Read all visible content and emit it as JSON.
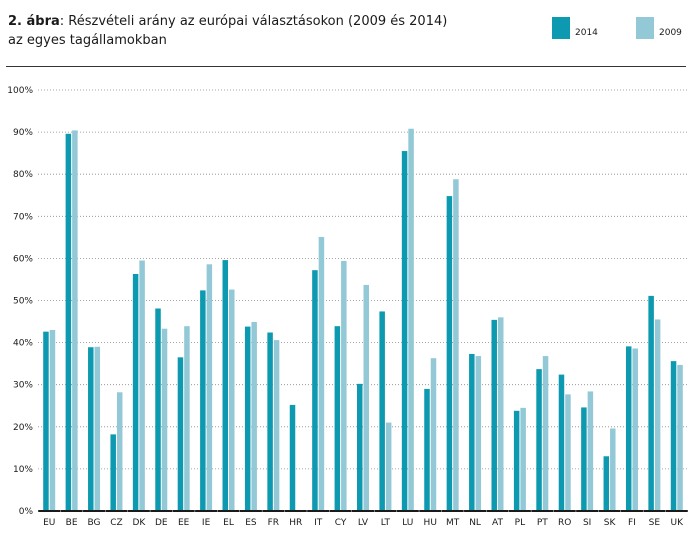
{
  "header": {
    "title_prefix": "2. ábra",
    "title_rest": ": Részvételi arány az európai választásokon (2009 és 2014) az egyes tagállamokban"
  },
  "legend": {
    "items": [
      {
        "label": "2014",
        "color": "#0d9ab0"
      },
      {
        "label": "2009",
        "color": "#93c9d7"
      }
    ]
  },
  "chart_data": {
    "type": "bar",
    "title": "2. ábra: Részvételi arány az európai választásokon (2009 és 2014) az egyes tagállamokban",
    "xlabel": "",
    "ylabel": "",
    "ylim": [
      0,
      100
    ],
    "yticks": [
      "0%",
      "10%",
      "20%",
      "30%",
      "40%",
      "50%",
      "60%",
      "70%",
      "80%",
      "90%",
      "100%"
    ],
    "grid": "horizontal dotted",
    "legend_position": "top-right",
    "categories": [
      "EU",
      "BE",
      "BG",
      "CZ",
      "DK",
      "DE",
      "EE",
      "IE",
      "EL",
      "ES",
      "FR",
      "HR",
      "IT",
      "CY",
      "LV",
      "LT",
      "LU",
      "HU",
      "MT",
      "NL",
      "AT",
      "PL",
      "PT",
      "RO",
      "SI",
      "SK",
      "FI",
      "SE",
      "UK"
    ],
    "series": [
      {
        "name": "2014",
        "color": "#0d9ab0",
        "values": [
          42.6,
          89.6,
          38.9,
          18.2,
          56.3,
          48.1,
          36.5,
          52.4,
          59.6,
          43.8,
          42.4,
          25.2,
          57.2,
          43.9,
          30.2,
          47.4,
          85.5,
          29.0,
          74.8,
          37.3,
          45.4,
          23.8,
          33.7,
          32.4,
          24.6,
          13.0,
          39.1,
          51.1,
          35.6
        ]
      },
      {
        "name": "2009",
        "color": "#93c9d7",
        "values": [
          43.0,
          90.4,
          39.0,
          28.2,
          59.5,
          43.3,
          43.9,
          58.6,
          52.6,
          44.9,
          40.6,
          null,
          65.1,
          59.4,
          53.7,
          21.0,
          90.8,
          36.3,
          78.8,
          36.8,
          46.0,
          24.5,
          36.8,
          27.7,
          28.4,
          19.6,
          38.6,
          45.5,
          34.7
        ]
      }
    ]
  }
}
